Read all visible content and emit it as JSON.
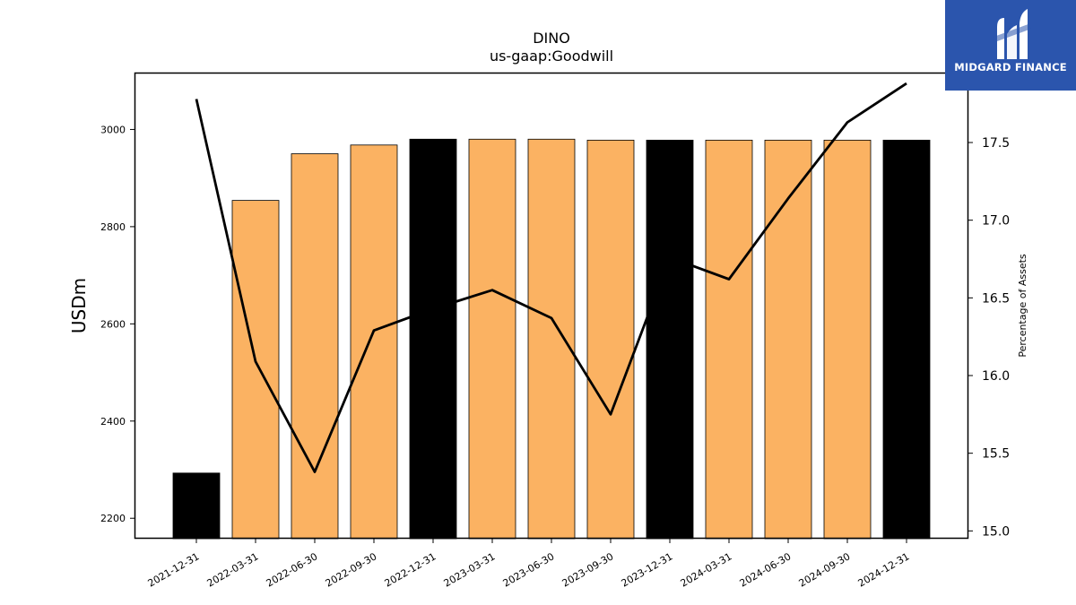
{
  "header": {
    "title": "DINO",
    "subtitle": "us-gaap:Goodwill"
  },
  "logo": {
    "brand_text": "MIDGARD FINANCE",
    "background": "#2b55ad",
    "icon": "midgard-m-logo-icon"
  },
  "colors": {
    "bar_default": "#fbb262",
    "bar_year_end": "#000000",
    "line": "#000000"
  },
  "chart_data": {
    "type": "bar",
    "title": "DINO",
    "subtitle": "us-gaap:Goodwill",
    "ylabel": "USDm",
    "y2label": "Percentage of Assets",
    "ylim": [
      2158,
      3117
    ],
    "y2lim": [
      14.95,
      17.95
    ],
    "yticks": [
      2200,
      2400,
      2600,
      2800,
      3000
    ],
    "y2ticks": [
      "15.0",
      "15.5",
      "16.0",
      "16.5",
      "17.0",
      "17.5"
    ],
    "categories": [
      "2021-12-31",
      "2022-03-31",
      "2022-06-30",
      "2022-09-30",
      "2022-12-31",
      "2023-03-31",
      "2023-06-30",
      "2023-09-30",
      "2023-12-31",
      "2024-03-31",
      "2024-06-30",
      "2024-09-30",
      "2024-12-31"
    ],
    "series": [
      {
        "type": "bar",
        "axis": "left",
        "values": [
          2293,
          2854,
          2950,
          2968,
          2980,
          2980,
          2980,
          2978,
          2978,
          2978,
          2978,
          2978,
          2978
        ],
        "year_end": [
          true,
          false,
          false,
          false,
          true,
          false,
          false,
          false,
          true,
          false,
          false,
          false,
          true
        ]
      },
      {
        "type": "line",
        "axis": "right",
        "values": [
          17.78,
          16.09,
          15.38,
          16.29,
          16.43,
          16.55,
          16.37,
          15.75,
          16.76,
          16.62,
          17.14,
          17.63,
          17.88
        ]
      }
    ],
    "grid": false,
    "legend": "none"
  }
}
